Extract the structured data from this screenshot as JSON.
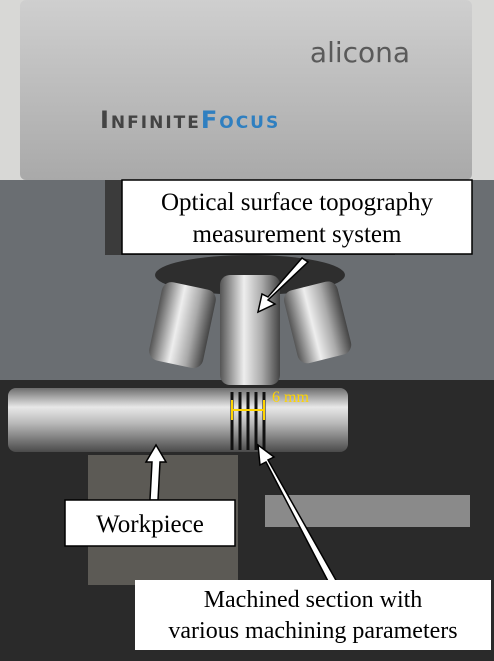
{
  "brand": {
    "logo": "alicona",
    "product_part1": "Infinite",
    "product_part2": "Focus"
  },
  "annotations": {
    "system": [
      "Optical surface topography",
      "measurement system"
    ],
    "dimension": "6 mm",
    "workpiece": "Workpiece",
    "section": [
      "Machined section with",
      "various machining parameters"
    ]
  }
}
